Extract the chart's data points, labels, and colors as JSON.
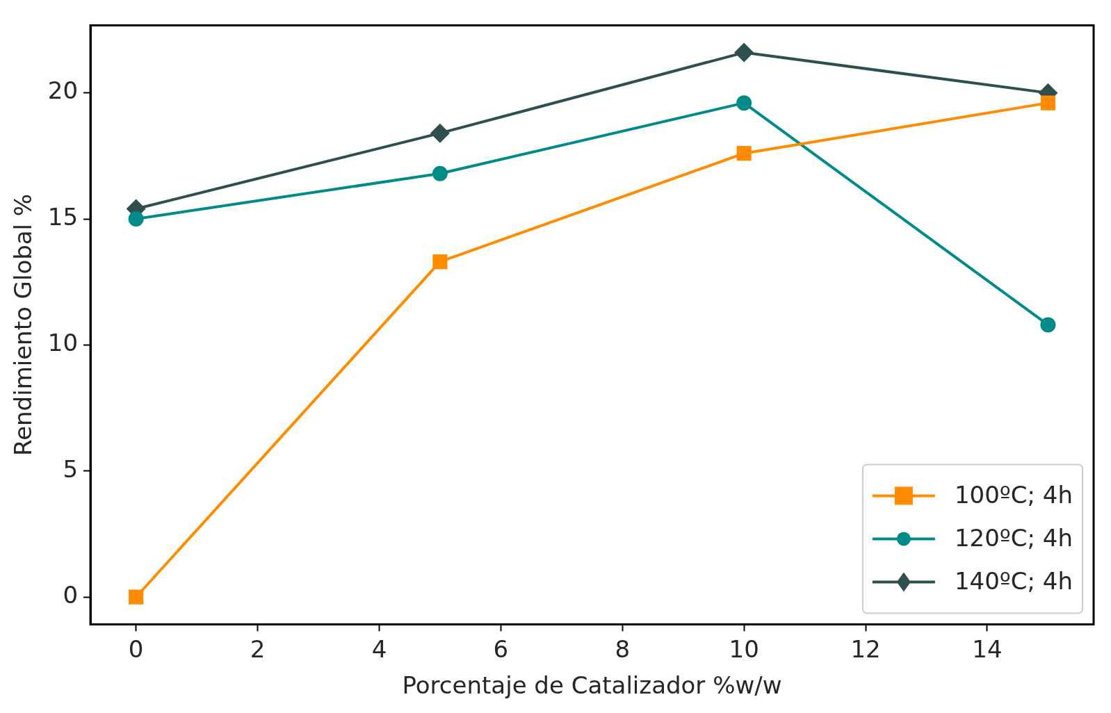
{
  "chart_data": {
    "type": "line",
    "xlabel": "Porcentaje de Catalizador %w/w",
    "ylabel": "Rendimiento Global %",
    "x": [
      0,
      5,
      10,
      15
    ],
    "series": [
      {
        "name": "100ºC; 4h",
        "color": "#ff8c00",
        "marker": "square",
        "values": [
          0,
          13.3,
          17.6,
          19.6
        ]
      },
      {
        "name": "120ºC; 4h",
        "color": "#008b8b",
        "marker": "circle",
        "values": [
          15.0,
          16.8,
          19.6,
          10.8
        ]
      },
      {
        "name": "140ºC; 4h",
        "color": "#2f4f4f",
        "marker": "diamond",
        "values": [
          15.4,
          18.4,
          21.6,
          20.0
        ]
      }
    ],
    "xlim": [
      -0.75,
      15.75
    ],
    "xticks": [
      0,
      2,
      4,
      6,
      8,
      10,
      12,
      14
    ],
    "ylim": [
      -1.08,
      22.68
    ],
    "yticks": [
      0,
      5,
      10,
      15,
      20
    ],
    "grid": false,
    "legend": "bottom right",
    "line_style": "solid"
  }
}
